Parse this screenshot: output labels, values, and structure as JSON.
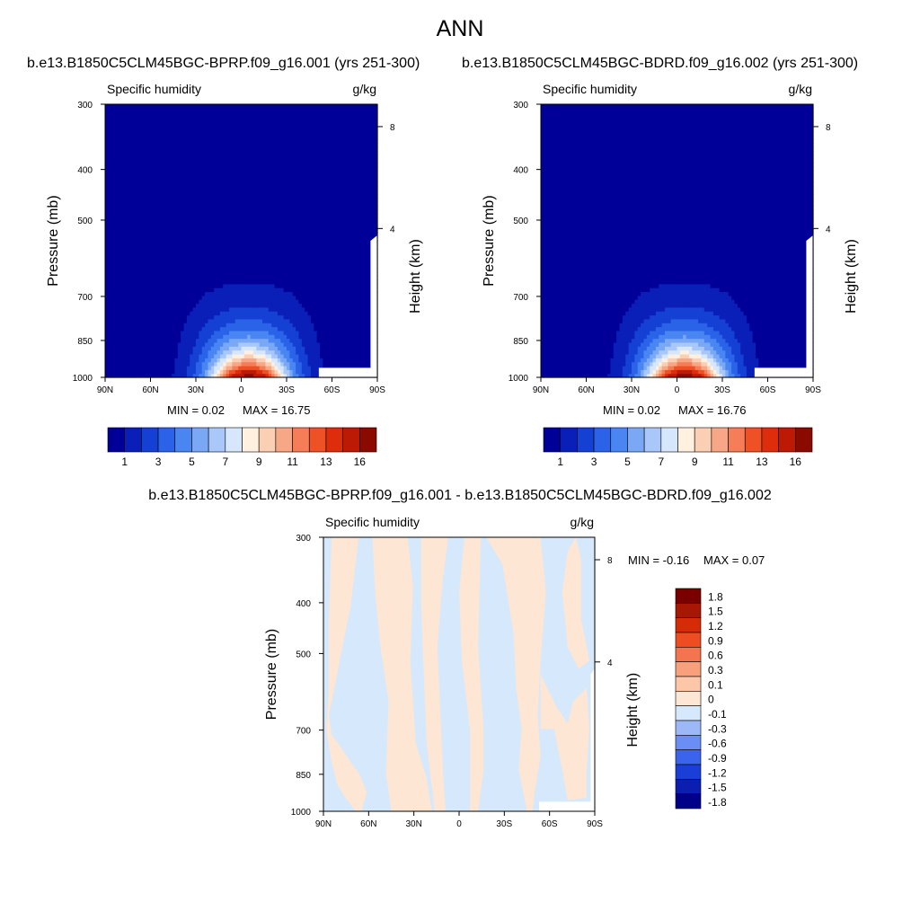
{
  "figure": {
    "title": "ANN"
  },
  "colors": {
    "base_scale": [
      "#000099",
      "#0a1fb8",
      "#1540d4",
      "#2b63e8",
      "#4a86f2",
      "#7aa8f5",
      "#a9c7f8",
      "#d7e7fb",
      "#fff0e0",
      "#fbcfb3",
      "#f7a785",
      "#f57d57",
      "#ef5126",
      "#de2d0c",
      "#bd1a06",
      "#8a0a00"
    ],
    "diff_scale": [
      "#000088",
      "#0b1eb0",
      "#1a3fd6",
      "#3a64ec",
      "#6a8ef3",
      "#9cb8f7",
      "#d6e8fb",
      "#fde6d4",
      "#fcc6a8",
      "#f8a07c",
      "#f37550",
      "#ee4d21",
      "#d52c07",
      "#a81604",
      "#7a0000"
    ],
    "frame": "#000000"
  },
  "chart_data": [
    {
      "type": "contour",
      "title": "b.e13.B1850C5CLM45BGC-BPRP.f09_g16.001 (yrs 251-300)",
      "variable": "Specific humidity",
      "units": "g/kg",
      "ylabel": "Pressure (mb)",
      "ylabel_right": "Height (km)",
      "x_ticks": [
        "90N",
        "60N",
        "30N",
        "0",
        "30S",
        "60S",
        "90S"
      ],
      "y_ticks": [
        "300",
        "400",
        "500",
        "700",
        "850",
        "1000"
      ],
      "height_ticks": [
        "8",
        "4"
      ],
      "ylim": [
        1000,
        300
      ],
      "min_label": "MIN =   0.02",
      "max_label": "MAX =  16.75",
      "min": 0.02,
      "max": 16.75,
      "colorbar_labels": [
        "1",
        "3",
        "5",
        "7",
        "9",
        "11",
        "13",
        "16"
      ],
      "profile": {
        "peak_lat": -5,
        "peak_value": 16.75,
        "surface_min": 0.02
      }
    },
    {
      "type": "contour",
      "title": "b.e13.B1850C5CLM45BGC-BDRD.f09_g16.002 (yrs 251-300)",
      "variable": "Specific humidity",
      "units": "g/kg",
      "ylabel": "Pressure (mb)",
      "ylabel_right": "Height (km)",
      "x_ticks": [
        "90N",
        "60N",
        "30N",
        "0",
        "30S",
        "60S",
        "90S"
      ],
      "y_ticks": [
        "300",
        "400",
        "500",
        "700",
        "850",
        "1000"
      ],
      "height_ticks": [
        "8",
        "4"
      ],
      "ylim": [
        1000,
        300
      ],
      "min_label": "MIN =   0.02",
      "max_label": "MAX =  16.76",
      "min": 0.02,
      "max": 16.76,
      "colorbar_labels": [
        "1",
        "3",
        "5",
        "7",
        "9",
        "11",
        "13",
        "16"
      ],
      "profile": {
        "peak_lat": -5,
        "peak_value": 16.76,
        "surface_min": 0.02
      }
    },
    {
      "type": "contour",
      "title": "b.e13.B1850C5CLM45BGC-BPRP.f09_g16.001 - b.e13.B1850C5CLM45BGC-BDRD.f09_g16.002",
      "variable": "Specific humidity",
      "units": "g/kg",
      "ylabel": "Pressure (mb)",
      "ylabel_right": "Height (km)",
      "x_ticks": [
        "90N",
        "60N",
        "30N",
        "0",
        "30S",
        "60S",
        "90S"
      ],
      "y_ticks": [
        "300",
        "400",
        "500",
        "700",
        "850",
        "1000"
      ],
      "height_ticks": [
        "8",
        "4"
      ],
      "ylim": [
        1000,
        300
      ],
      "min_label": "MIN =  -0.16",
      "max_label": "MAX =   0.07",
      "min": -0.16,
      "max": 0.07,
      "colorbar_labels": [
        "1.8",
        "1.5",
        "1.2",
        "0.9",
        "0.6",
        "0.3",
        "0.1",
        "0",
        "-0.1",
        "-0.3",
        "-0.6",
        "-0.9",
        "-1.2",
        "-1.5",
        "-1.8"
      ]
    }
  ]
}
